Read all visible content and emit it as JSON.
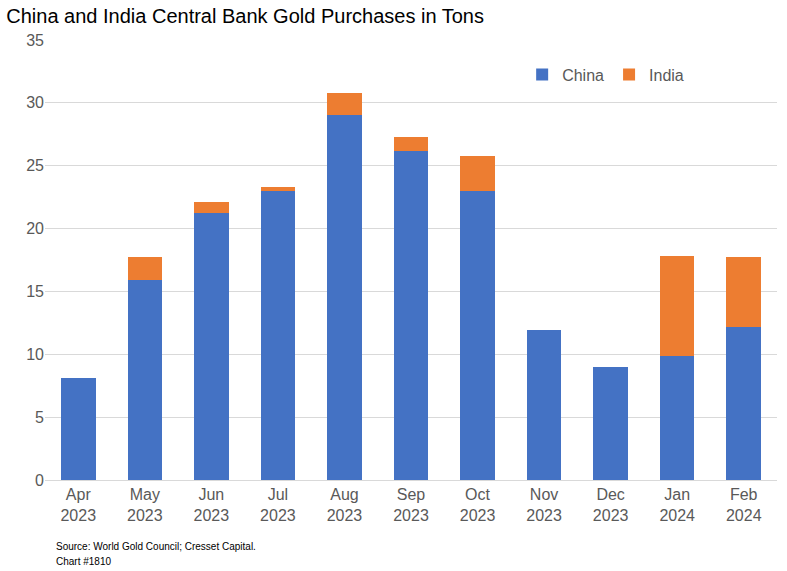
{
  "chart_data": {
    "type": "bar",
    "title": "China and India Central Bank Gold Purchases in Tons",
    "categories": [
      "Apr 2023",
      "May 2023",
      "Jun 2023",
      "Jul 2023",
      "Aug 2023",
      "Sep 2023",
      "Oct 2023",
      "Nov 2023",
      "Dec 2023",
      "Jan 2024",
      "Feb 2024"
    ],
    "series": [
      {
        "name": "China",
        "color": "#4472c4",
        "values": [
          8.1,
          15.9,
          21.2,
          23.0,
          29.0,
          26.2,
          23.0,
          11.9,
          9.0,
          9.9,
          12.2
        ]
      },
      {
        "name": "India",
        "color": "#ed7d31",
        "values": [
          0,
          1.8,
          0.9,
          0.3,
          1.8,
          1.1,
          2.8,
          0,
          0,
          7.9,
          5.5
        ]
      }
    ],
    "stacked": true,
    "ylim": [
      0,
      35
    ],
    "yticks": [
      0,
      5,
      10,
      15,
      20,
      25,
      30,
      35
    ],
    "grid": true,
    "legend": "top right",
    "annotations": [
      "Source: World Gold Council; Cresset Capital.",
      "Chart #1810"
    ]
  }
}
